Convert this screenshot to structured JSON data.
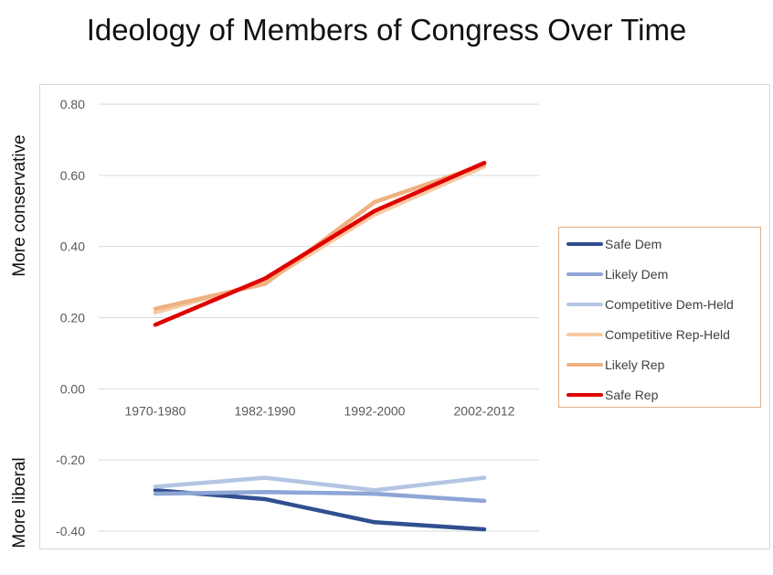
{
  "title": "Ideology of Members of Congress Over Time",
  "ylabel_top": "More conservative",
  "ylabel_bottom": "More liberal",
  "chart_data": {
    "type": "line",
    "title": "Ideology of Members of Congress Over Time",
    "xlabel": "",
    "ylabel": "",
    "categories": [
      "1970-1980",
      "1982-1990",
      "1992-2000",
      "2002-2012"
    ],
    "ylim": [
      -0.4,
      0.8
    ],
    "yticks": [
      "0.80",
      "0.60",
      "0.40",
      "0.20",
      "0.00",
      "-0.20",
      "-0.40"
    ],
    "ytick_values": [
      0.8,
      0.6,
      0.4,
      0.2,
      0.0,
      -0.2,
      -0.4
    ],
    "grid": true,
    "legend_position": "right",
    "series": [
      {
        "name": "Safe Dem",
        "color": "#2f4f8f",
        "values": [
          -0.285,
          -0.31,
          -0.375,
          -0.395
        ]
      },
      {
        "name": "Likely Dem",
        "color": "#8ea5d6",
        "values": [
          -0.295,
          -0.29,
          -0.295,
          -0.315
        ]
      },
      {
        "name": "Competitive Dem-Held",
        "color": "#b4c5e4",
        "values": [
          -0.275,
          -0.25,
          -0.285,
          -0.25
        ]
      },
      {
        "name": "Competitive Rep-Held",
        "color": "#f8cba5",
        "values": [
          0.215,
          0.3,
          0.49,
          0.625
        ]
      },
      {
        "name": "Likely Rep",
        "color": "#f0b080",
        "values": [
          0.225,
          0.295,
          0.525,
          0.63
        ]
      },
      {
        "name": "Safe Rep",
        "color": "#e00000",
        "values": [
          0.18,
          0.31,
          0.5,
          0.635
        ]
      }
    ]
  }
}
